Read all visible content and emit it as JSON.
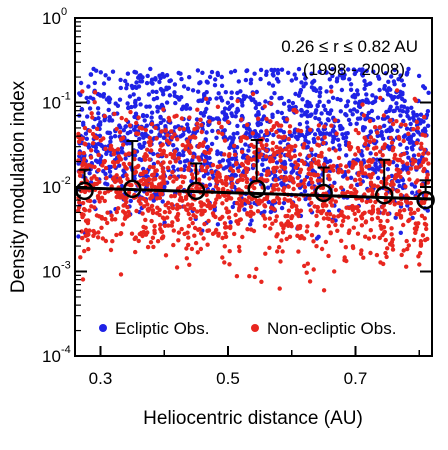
{
  "chart_data": {
    "type": "scatter",
    "title": "",
    "xlabel": "Heliocentric distance (AU)",
    "ylabel": "Density modulation index",
    "xlim": [
      0.26,
      0.82
    ],
    "ylim": [
      0.0001,
      1
    ],
    "y_scale": "log",
    "x_ticks": [
      "0.3",
      "0.5",
      "0.7"
    ],
    "x_tick_values": [
      0.3,
      0.5,
      0.7
    ],
    "y_ticks": [
      {
        "value": 1,
        "base": "10",
        "exp": "0"
      },
      {
        "value": 0.1,
        "base": "10",
        "exp": "-1"
      },
      {
        "value": 0.01,
        "base": "10",
        "exp": "-2"
      },
      {
        "value": 0.001,
        "base": "10",
        "exp": "-3"
      },
      {
        "value": 0.0001,
        "base": "10",
        "exp": "-4"
      }
    ],
    "annotation_range": "0.26 ≤ r ≤ 0.82 AU",
    "annotation_years": "(1998 - 2008)",
    "grid": false,
    "legend_position": "bottom",
    "series": [
      {
        "name": "Ecliptic Obs.",
        "color": "#1f22e6",
        "x_range": [
          0.26,
          0.82
        ],
        "y_range": [
          0.002,
          0.25
        ]
      },
      {
        "name": "Non-ecliptic Obs.",
        "color": "#e8261f",
        "x_range": [
          0.26,
          0.82
        ],
        "y_range": [
          0.0005,
          0.2
        ]
      }
    ],
    "mean_points": {
      "x": [
        0.275,
        0.35,
        0.45,
        0.545,
        0.65,
        0.745,
        0.81
      ],
      "y": [
        0.009,
        0.0095,
        0.009,
        0.0095,
        0.0085,
        0.008,
        0.007
      ],
      "err_upper": [
        0.016,
        0.035,
        0.019,
        0.036,
        0.017,
        0.021,
        0.012
      ]
    },
    "fit_line": {
      "x": [
        0.26,
        0.82
      ],
      "y": [
        0.0098,
        0.0072
      ]
    }
  }
}
